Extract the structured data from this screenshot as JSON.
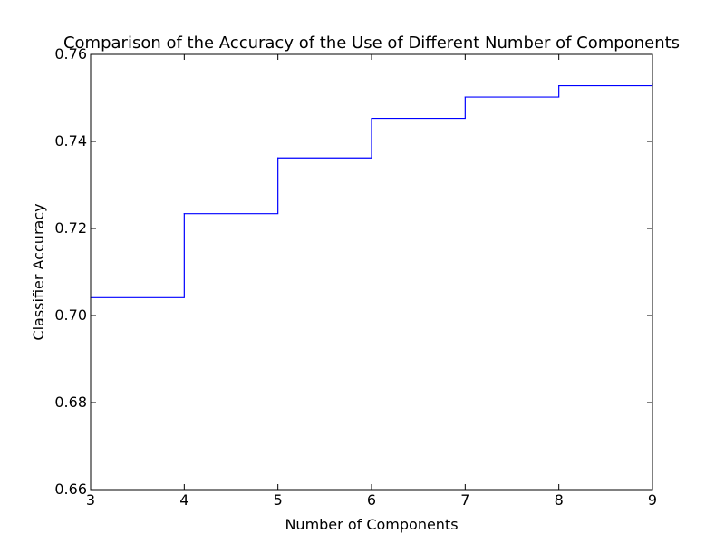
{
  "chart_data": {
    "type": "line",
    "title": "Comparison of the Accuracy of the Use of Different Number of Components",
    "xlabel": "Number of Components",
    "ylabel": "Classifier Accuracy",
    "xlim": [
      3,
      9
    ],
    "ylim": [
      0.66,
      0.76
    ],
    "xticks": [
      "3",
      "4",
      "5",
      "6",
      "7",
      "8",
      "9"
    ],
    "yticks": [
      "0.66",
      "0.68",
      "0.70",
      "0.72",
      "0.74",
      "0.76"
    ],
    "grid": false,
    "legend": "none",
    "drawstyle": "steps-post",
    "series": [
      {
        "color": "#0000ff",
        "x": [
          3,
          4,
          5,
          6,
          7,
          8,
          9
        ],
        "y": [
          0.7041,
          0.7234,
          0.7362,
          0.7453,
          0.7502,
          0.7528,
          0.7532
        ]
      }
    ]
  }
}
